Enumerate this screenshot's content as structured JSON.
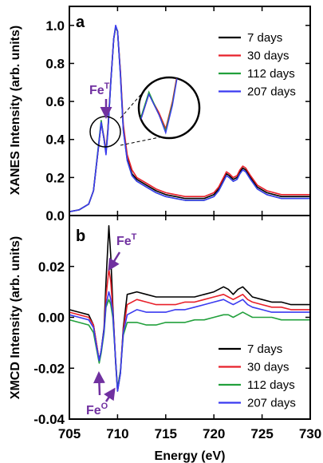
{
  "chart_data": [
    {
      "type": "line",
      "panel": "a",
      "ylabel": "XANES Intensity (arb. units)",
      "xlim": [
        705,
        730
      ],
      "ylim": [
        0,
        1.1
      ],
      "yticks": [
        "0.0",
        "0.2",
        "0.4",
        "0.6",
        "0.8",
        "1.0"
      ],
      "legend_position": "top-right",
      "annotations": [
        {
          "base": "Fe",
          "sup": "T"
        }
      ],
      "inset": "magnified view of the 708.3 eV pre-edge peak region",
      "x": [
        705,
        706,
        707,
        707.5,
        708,
        708.3,
        708.6,
        708.8,
        709,
        709.3,
        709.6,
        709.8,
        710,
        710.3,
        710.6,
        711,
        711.5,
        712,
        713,
        714,
        715,
        716,
        717,
        718,
        719,
        720,
        720.5,
        721,
        721.3,
        721.6,
        722,
        722.4,
        722.7,
        723,
        723.3,
        723.8,
        724.5,
        725.5,
        727,
        730
      ],
      "series": [
        {
          "name": "7 days",
          "color": "#000000",
          "values": [
            0.02,
            0.03,
            0.06,
            0.13,
            0.35,
            0.49,
            0.4,
            0.33,
            0.45,
            0.7,
            0.93,
            0.99,
            0.97,
            0.75,
            0.46,
            0.3,
            0.22,
            0.19,
            0.16,
            0.13,
            0.11,
            0.1,
            0.09,
            0.09,
            0.09,
            0.11,
            0.14,
            0.19,
            0.22,
            0.21,
            0.19,
            0.2,
            0.23,
            0.25,
            0.24,
            0.2,
            0.15,
            0.12,
            0.1,
            0.1
          ]
        },
        {
          "name": "30 days",
          "color": "#e8202a",
          "values": [
            0.02,
            0.03,
            0.06,
            0.13,
            0.35,
            0.49,
            0.41,
            0.34,
            0.46,
            0.71,
            0.93,
            0.99,
            0.97,
            0.76,
            0.48,
            0.32,
            0.24,
            0.2,
            0.17,
            0.14,
            0.12,
            0.11,
            0.1,
            0.1,
            0.1,
            0.12,
            0.15,
            0.2,
            0.23,
            0.22,
            0.2,
            0.21,
            0.24,
            0.26,
            0.25,
            0.21,
            0.16,
            0.13,
            0.11,
            0.11
          ]
        },
        {
          "name": "112 days",
          "color": "#22a03c",
          "values": [
            0.02,
            0.03,
            0.06,
            0.13,
            0.36,
            0.5,
            0.4,
            0.33,
            0.45,
            0.7,
            0.93,
            0.99,
            0.97,
            0.74,
            0.45,
            0.29,
            0.21,
            0.18,
            0.15,
            0.12,
            0.1,
            0.09,
            0.08,
            0.08,
            0.08,
            0.1,
            0.13,
            0.18,
            0.21,
            0.2,
            0.18,
            0.19,
            0.22,
            0.24,
            0.23,
            0.19,
            0.14,
            0.11,
            0.09,
            0.09
          ]
        },
        {
          "name": "207 days",
          "color": "#3a3af0",
          "values": [
            0.02,
            0.03,
            0.06,
            0.13,
            0.35,
            0.49,
            0.4,
            0.32,
            0.44,
            0.7,
            0.93,
            1.0,
            0.97,
            0.74,
            0.45,
            0.29,
            0.21,
            0.18,
            0.15,
            0.12,
            0.1,
            0.09,
            0.08,
            0.08,
            0.08,
            0.1,
            0.13,
            0.18,
            0.21,
            0.2,
            0.18,
            0.19,
            0.22,
            0.24,
            0.23,
            0.19,
            0.14,
            0.11,
            0.09,
            0.09
          ]
        }
      ]
    },
    {
      "type": "line",
      "panel": "b",
      "ylabel": "XMCD Intensity (arb. units)",
      "xlabel": "Energy (eV)",
      "xlim": [
        705,
        730
      ],
      "ylim": [
        -0.04,
        0.04
      ],
      "xticks": [
        "705",
        "710",
        "715",
        "720",
        "725",
        "730"
      ],
      "yticks": [
        "-0.04",
        "-0.02",
        "0.00",
        "0.02"
      ],
      "legend_position": "bottom-right",
      "annotations": [
        {
          "base": "Fe",
          "sup": "T"
        },
        {
          "base": "Fe",
          "sup": "O"
        }
      ],
      "x": [
        705,
        706,
        707,
        707.5,
        707.8,
        708.1,
        708.3,
        708.6,
        708.8,
        709.1,
        709.3,
        709.5,
        709.8,
        710,
        710.3,
        710.6,
        711,
        712,
        713,
        714,
        715,
        716,
        717,
        718,
        719,
        720,
        721,
        721.5,
        722,
        722.5,
        723,
        723.5,
        724,
        725,
        726,
        727,
        728,
        729,
        730
      ],
      "series": [
        {
          "name": "7 days",
          "color": "#000000",
          "values": [
            0.003,
            0.002,
            0.001,
            -0.003,
            -0.01,
            -0.017,
            -0.013,
            -0.004,
            0.014,
            0.036,
            0.024,
            0.005,
            -0.018,
            -0.029,
            -0.022,
            -0.004,
            0.009,
            0.01,
            0.009,
            0.008,
            0.008,
            0.008,
            0.008,
            0.008,
            0.009,
            0.01,
            0.012,
            0.011,
            0.009,
            0.011,
            0.012,
            0.01,
            0.008,
            0.007,
            0.006,
            0.006,
            0.005,
            0.005,
            0.005
          ]
        },
        {
          "name": "30 days",
          "color": "#e8202a",
          "values": [
            0.002,
            0.001,
            0.0,
            -0.003,
            -0.01,
            -0.017,
            -0.013,
            -0.005,
            0.008,
            0.019,
            0.014,
            0.003,
            -0.017,
            -0.028,
            -0.021,
            -0.005,
            0.005,
            0.007,
            0.006,
            0.005,
            0.005,
            0.005,
            0.006,
            0.006,
            0.007,
            0.008,
            0.009,
            0.008,
            0.007,
            0.008,
            0.009,
            0.007,
            0.006,
            0.005,
            0.004,
            0.004,
            0.003,
            0.003,
            0.003
          ]
        },
        {
          "name": "112 days",
          "color": "#22a03c",
          "values": [
            -0.001,
            -0.002,
            -0.003,
            -0.006,
            -0.012,
            -0.018,
            -0.014,
            -0.006,
            0.004,
            0.007,
            0.005,
            0.0,
            -0.017,
            -0.028,
            -0.021,
            -0.007,
            -0.002,
            -0.002,
            -0.003,
            -0.003,
            -0.002,
            -0.002,
            -0.002,
            -0.001,
            -0.001,
            0.0,
            0.001,
            0.001,
            0.0,
            0.001,
            0.002,
            0.001,
            0.0,
            0.0,
            0.0,
            -0.001,
            -0.001,
            -0.001,
            -0.001
          ]
        },
        {
          "name": "207 days",
          "color": "#3a3af0",
          "values": [
            0.001,
            0.0,
            -0.001,
            -0.004,
            -0.011,
            -0.017,
            -0.013,
            -0.005,
            0.005,
            0.01,
            0.007,
            0.002,
            -0.017,
            -0.029,
            -0.022,
            -0.006,
            0.001,
            0.003,
            0.002,
            0.002,
            0.002,
            0.003,
            0.003,
            0.004,
            0.005,
            0.006,
            0.007,
            0.006,
            0.005,
            0.006,
            0.007,
            0.005,
            0.004,
            0.003,
            0.002,
            0.002,
            0.002,
            0.002,
            0.002
          ]
        }
      ]
    }
  ]
}
